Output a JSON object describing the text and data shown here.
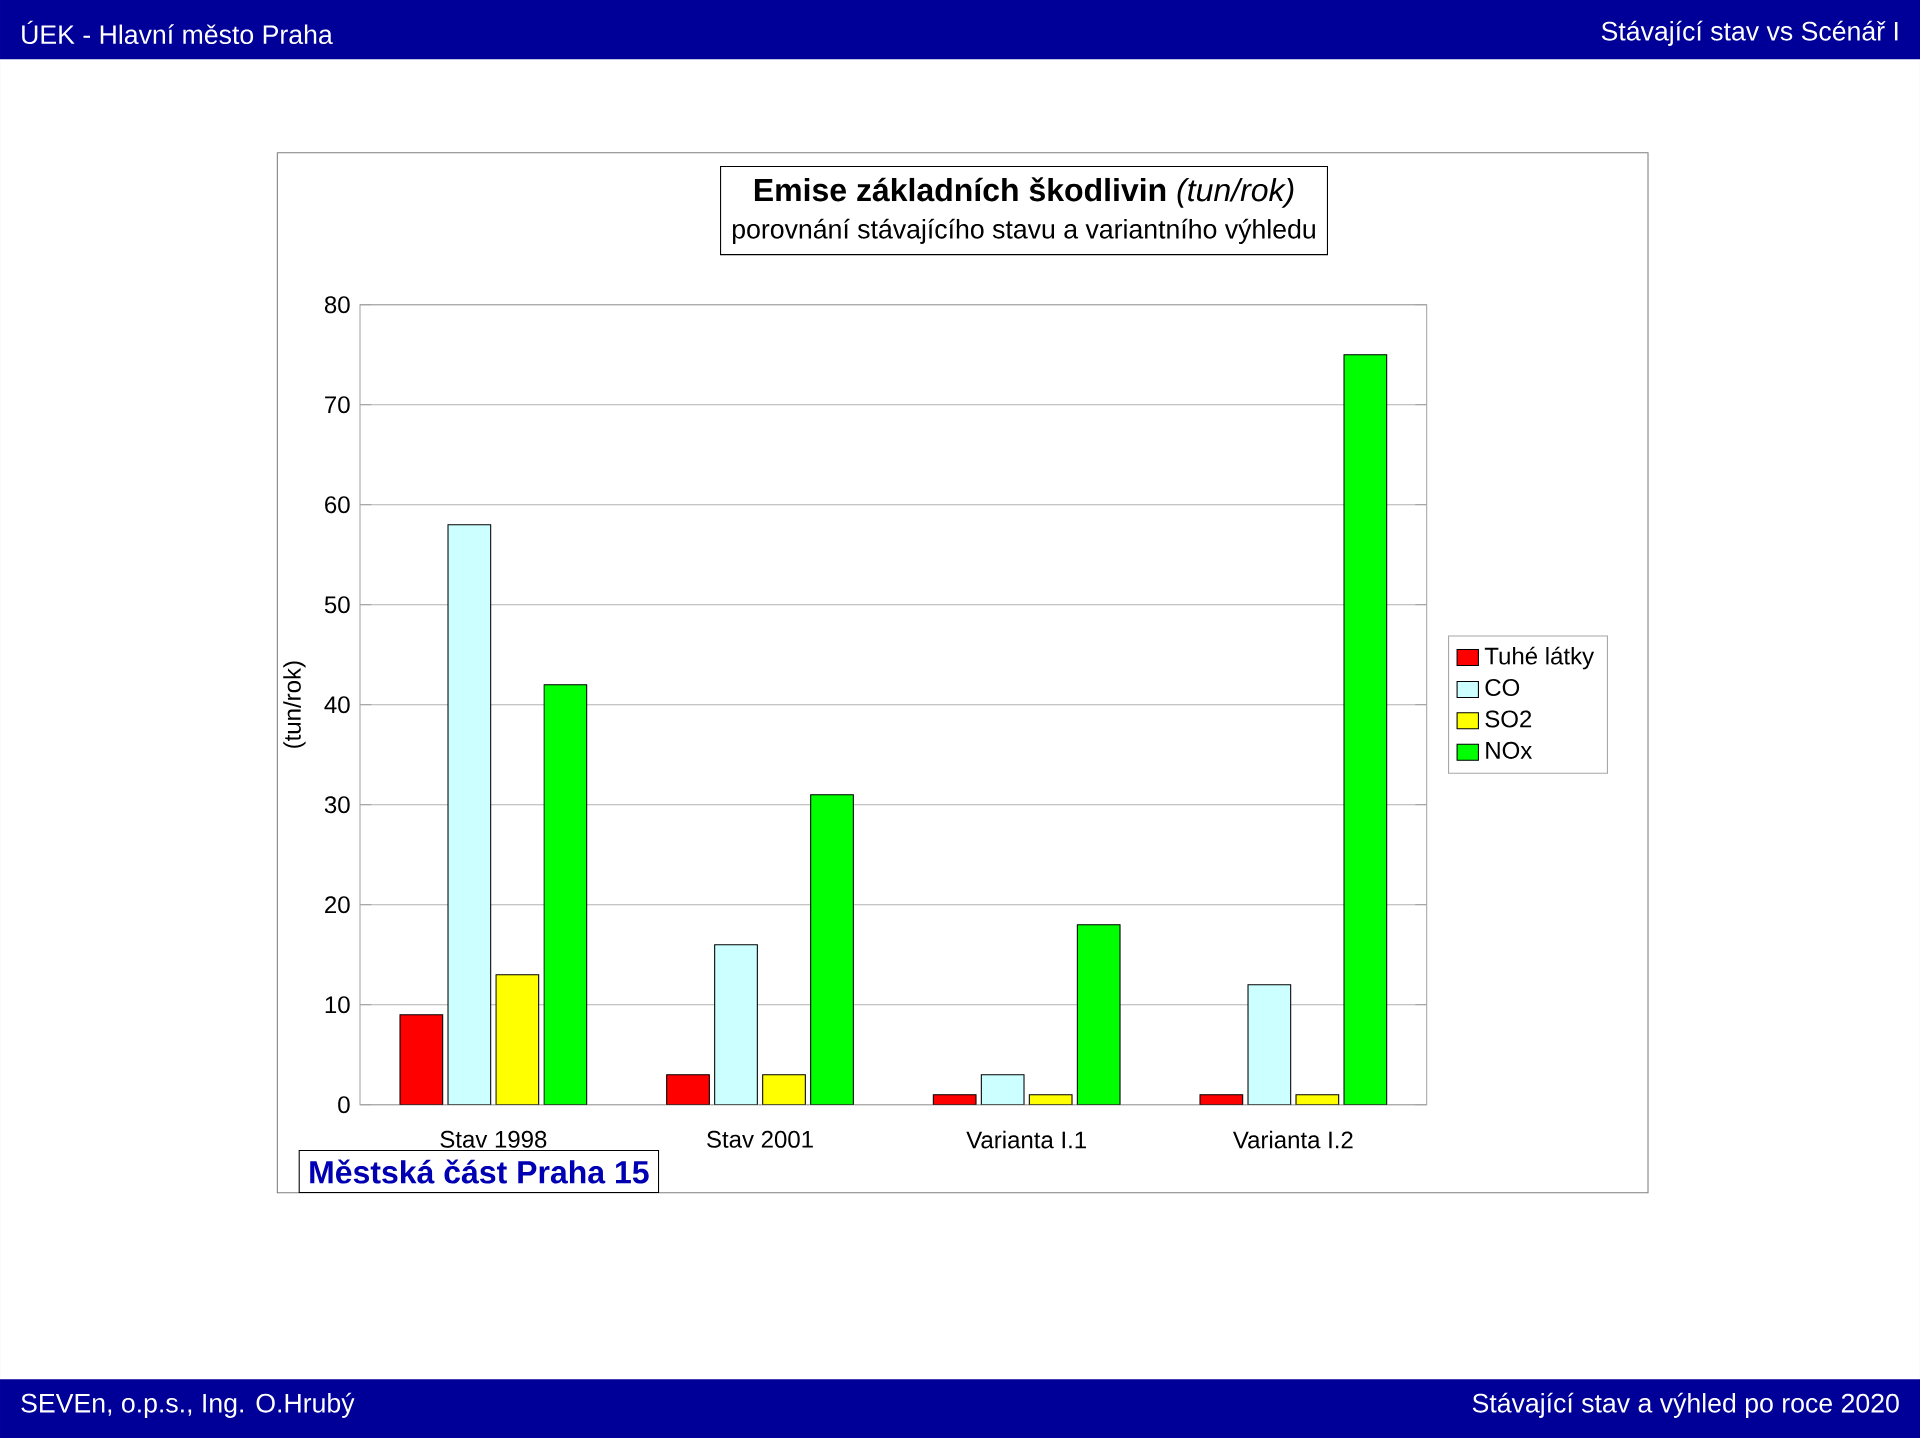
{
  "chart_data": {
    "type": "bar",
    "title": "**Emise základních škodlivin** *(tun/rok)*",
    "subtitle": "porovnání stávajícího stavu a variantního výhledu",
    "ylabel": "(tun/rok)",
    "categories": [
      "Stav 1998",
      "Stav 2001",
      "Varianta I.1",
      "Varianta I.2"
    ],
    "series": [
      {
        "name": "Tuhé látky",
        "color": "#ff0000",
        "values": [
          9,
          3,
          1,
          1
        ]
      },
      {
        "name": "CO",
        "color": "#ccffff",
        "values": [
          58,
          16,
          3,
          12
        ]
      },
      {
        "name": "SO2",
        "color": "#ffff00",
        "values": [
          13,
          3,
          1,
          1
        ]
      },
      {
        "name": "NOx",
        "color": "#00ff00",
        "values": [
          42,
          31,
          18,
          75
        ]
      }
    ],
    "ylim": [
      0,
      80
    ],
    "yticks": [
      0,
      10,
      20,
      30,
      40,
      50,
      60,
      70,
      80
    ],
    "grid": "y",
    "legend": "right",
    "annotations": [
      "ÚEK - Hlavní město Praha",
      "Stávající stav vs Scénář I",
      "Městská část Praha 15",
      "SEVEn, o.p.s., Ing. O.Hrubý",
      "Stávající stav a výhled po roce 2020"
    ]
  }
}
